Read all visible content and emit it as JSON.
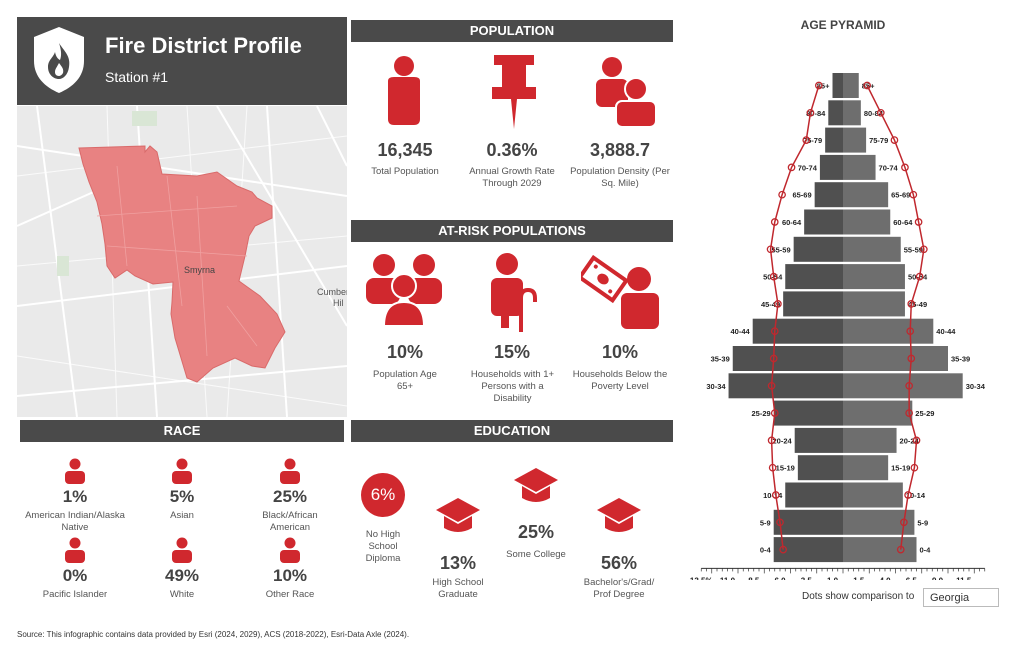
{
  "header": {
    "title": "Fire District Profile",
    "subtitle": "Station #1"
  },
  "map": {
    "labels": [
      "Smyrna",
      "Cumber",
      "Hil"
    ]
  },
  "population": {
    "title": "POPULATION",
    "stats": [
      {
        "value": "16,345",
        "label": "Total Population",
        "icon": "person-icon"
      },
      {
        "value": "0.36%",
        "label": "Annual Growth Rate Through 2029",
        "icon": "pushpin-icon"
      },
      {
        "value": "3,888.7",
        "label": "Population Density (Per Sq. Mile)",
        "icon": "crowd-icon"
      }
    ]
  },
  "at_risk": {
    "title": "AT-RISK POPULATIONS",
    "stats": [
      {
        "value": "10%",
        "label": "Population Age 65+",
        "icon": "elderly-group-icon"
      },
      {
        "value": "15%",
        "label": "Households with 1+ Persons with a Disability",
        "icon": "cane-person-icon"
      },
      {
        "value": "10%",
        "label": "Households Below the Poverty Level",
        "icon": "money-person-icon"
      }
    ]
  },
  "race": {
    "title": "RACE",
    "items": [
      {
        "value": "1%",
        "label": "American Indian/Alaska Native"
      },
      {
        "value": "5%",
        "label": "Asian"
      },
      {
        "value": "25%",
        "label": "Black/African American"
      },
      {
        "value": "0%",
        "label": "Pacific Islander"
      },
      {
        "value": "49%",
        "label": "White"
      },
      {
        "value": "10%",
        "label": "Other Race"
      }
    ]
  },
  "education": {
    "title": "EDUCATION",
    "items": [
      {
        "value": "6%",
        "label": "No High School Diploma"
      },
      {
        "value": "13%",
        "label": "High School Graduate"
      },
      {
        "value": "25%",
        "label": "Some College"
      },
      {
        "value": "56%",
        "label": "Bachelor's/Grad/ Prof Degree"
      }
    ]
  },
  "pyramid": {
    "title": "AGE PYRAMID",
    "comparison_label": "Dots show comparison to",
    "comparison_value": "Georgia"
  },
  "chart_data": {
    "type": "bar",
    "orientation": "horizontal-pyramid",
    "title": "AGE PYRAMID",
    "categories": [
      "85+",
      "80-84",
      "75-79",
      "70-74",
      "65-69",
      "60-64",
      "55-59",
      "50-54",
      "45-49",
      "40-44",
      "35-39",
      "30-34",
      "25-29",
      "20-24",
      "15-19",
      "10-14",
      "5-9",
      "0-4"
    ],
    "series": [
      {
        "side": "left",
        "values": [
          1.0,
          1.4,
          1.7,
          2.2,
          2.7,
          3.7,
          4.7,
          5.5,
          5.7,
          8.6,
          10.5,
          10.9,
          6.6,
          4.6,
          4.3,
          5.5,
          6.6,
          6.6
        ]
      },
      {
        "side": "right",
        "values": [
          1.5,
          1.7,
          2.2,
          3.1,
          4.3,
          4.5,
          5.5,
          5.9,
          5.9,
          8.6,
          10.0,
          11.4,
          6.6,
          5.1,
          4.3,
          5.7,
          6.8,
          7.0
        ]
      },
      {
        "side": "left-comparison",
        "values": [
          2.3,
          3.1,
          3.5,
          4.9,
          5.8,
          6.5,
          6.9,
          6.6,
          6.2,
          6.5,
          6.6,
          6.8,
          6.5,
          6.8,
          6.7,
          6.4,
          6.0,
          5.7
        ]
      },
      {
        "side": "right-comparison",
        "values": [
          2.3,
          3.6,
          4.9,
          5.9,
          6.7,
          7.2,
          7.7,
          7.3,
          6.5,
          6.4,
          6.5,
          6.3,
          6.3,
          7.0,
          6.8,
          6.2,
          5.8,
          5.5
        ]
      }
    ],
    "xticks": [
      "13.5%",
      "11.0",
      "8.5",
      "6.0",
      "3.5",
      "1.0",
      "1.5",
      "4.0",
      "6.5",
      "9.0",
      "11.5"
    ],
    "xlim": [
      -13.5,
      13.5
    ]
  },
  "footer": {
    "source": "Source: This infographic contains data provided by Esri (2024, 2029), ACS (2018-2022), Esri-Data Axle (2024)."
  },
  "colors": {
    "accent": "#d0282e",
    "header_bg": "#4a4a4a",
    "map_fill": "#e88282",
    "bar_left": "#505050",
    "bar_right": "#6e6e6e"
  }
}
